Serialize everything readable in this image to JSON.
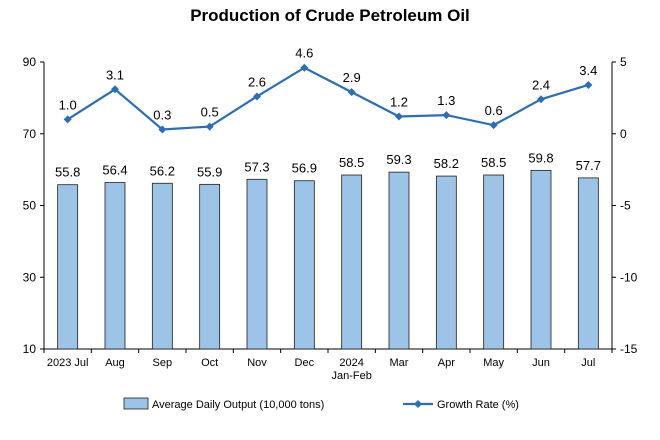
{
  "chart_data": {
    "type": "bar",
    "title": "Production of Crude Petroleum Oil",
    "categories": [
      "2023 Jul",
      "Aug",
      "Sep",
      "Oct",
      "Nov",
      "Dec",
      "2024\nJan-Feb",
      "Mar",
      "Apr",
      "May",
      "Jun",
      "Jul"
    ],
    "series": [
      {
        "name": "Average Daily Output (10,000 tons)",
        "type": "bar",
        "axis": "left",
        "values": [
          55.8,
          56.4,
          56.2,
          55.9,
          57.3,
          56.9,
          58.5,
          59.3,
          58.2,
          58.5,
          59.8,
          57.7
        ]
      },
      {
        "name": "Growth Rate (%)",
        "type": "line",
        "axis": "right",
        "values": [
          1.0,
          3.1,
          0.3,
          0.5,
          2.6,
          4.6,
          2.9,
          1.2,
          1.3,
          0.6,
          2.4,
          3.4
        ]
      }
    ],
    "y_left": {
      "min": 10,
      "max": 90,
      "ticks": [
        10,
        30,
        50,
        70,
        90
      ]
    },
    "y_right": {
      "min": -15,
      "max": 5,
      "ticks": [
        -15,
        -10,
        -5,
        0,
        5
      ]
    },
    "grid": false,
    "legend_position": "bottom",
    "colors": {
      "bar_fill": "#9DC3E6",
      "bar_stroke": "#1F1F1F",
      "line": "#2E6DB4"
    }
  }
}
